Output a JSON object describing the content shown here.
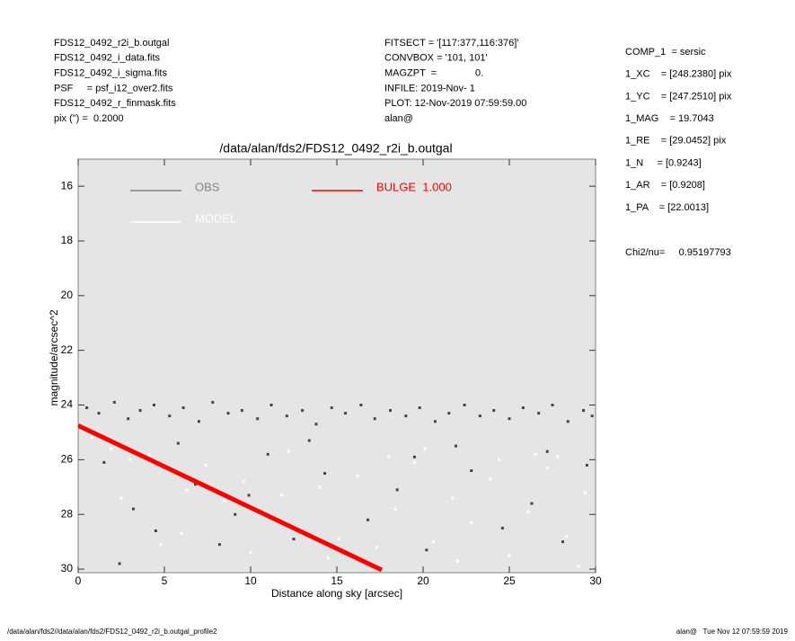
{
  "header": {
    "left": [
      "FDS12_0492_r2i_b.outgal",
      "FDS12_0492_i_data.fits",
      "FDS12_0492_i_sigma.fits",
      "PSF     = psf_i12_over2.fits",
      "FDS12_0492_r_finmask.fits",
      "pix (\") =  0.2000"
    ],
    "middle": [
      "FITSECT = '[117:377,116:376]'",
      "CONVBOX = '101, 101'",
      "MAGZPT  =              0.",
      "INFILE: 2019-Nov- 1",
      "PLOT: 12-Nov-2019 07:59:59.00",
      "alan@"
    ],
    "right": [
      "COMP_1  = sersic",
      "1_XC    = [248.2380] pix",
      "1_YC    = [247.2510] pix",
      "1_MAG    = 19.7043",
      "1_RE    = [29.0452] pix",
      "1_N     = [0.9243]",
      "1_AR    = [0.9208]",
      "1_PA    = [22.0013]"
    ],
    "chi2": "Chi2/nu=     0.95197793"
  },
  "footer": {
    "left": "/data/alan/fds2//data/alan/fds2/FDS12_0492_r2i_b.outgal_profile2",
    "right": "alan@   Tue Nov 12 07:59:59 2019"
  },
  "chart_data": {
    "type": "scatter",
    "title": "/data/alan/fds2/FDS12_0492_r2i_b.outgal",
    "x_label": "Distance along sky [arcsec]",
    "y_label": "magnitude/arcsec^2",
    "xlim": [
      0,
      30
    ],
    "ylim": [
      30.13,
      15.01
    ],
    "xticks": [
      0,
      5,
      10,
      15,
      20,
      25,
      30
    ],
    "yticks": [
      16,
      18,
      20,
      22,
      24,
      26,
      28,
      30
    ],
    "background": "#e5e5e5",
    "series": [
      {
        "name": "OBS",
        "color": "#444444",
        "mode": "markers",
        "x": [
          0.5,
          1.2,
          2.1,
          2.9,
          3.6,
          4.4,
          5.3,
          6.1,
          7.0,
          7.8,
          8.7,
          9.5,
          10.4,
          11.2,
          12.1,
          13.0,
          13.8,
          14.7,
          15.5,
          16.4,
          17.2,
          18.1,
          19.0,
          19.8,
          20.7,
          21.5,
          22.4,
          23.3,
          24.1,
          25.0,
          25.8,
          26.7,
          27.5,
          28.4,
          29.3,
          29.8,
          1.5,
          3.2,
          4.5,
          6.8,
          8.2,
          9.9,
          12.5,
          14.3,
          16.8,
          18.5,
          20.2,
          22.8,
          24.6,
          26.3,
          28.1,
          29.5,
          2.4,
          11.0,
          19.5,
          27.2,
          5.8,
          13.4,
          21.9,
          9.1
        ],
        "y": [
          24.1,
          24.3,
          23.9,
          24.5,
          24.2,
          24.0,
          24.4,
          24.1,
          24.6,
          23.9,
          24.3,
          24.2,
          24.5,
          24.0,
          24.4,
          24.2,
          24.7,
          24.1,
          24.3,
          24.0,
          24.5,
          24.2,
          24.4,
          24.1,
          24.6,
          24.3,
          24.0,
          24.4,
          24.2,
          24.5,
          24.1,
          24.3,
          24.0,
          24.6,
          24.2,
          24.4,
          26.1,
          27.8,
          28.6,
          26.9,
          29.1,
          27.3,
          28.9,
          26.5,
          28.2,
          27.1,
          29.3,
          26.4,
          28.5,
          27.6,
          29.0,
          26.2,
          29.8,
          25.8,
          25.9,
          25.7,
          25.4,
          25.3,
          25.5,
          28.0
        ]
      },
      {
        "name": "MODEL",
        "color": "#ffffff",
        "mode": "markers",
        "x": [
          0.8,
          1.9,
          3.0,
          4.1,
          5.2,
          6.3,
          7.4,
          8.5,
          9.6,
          10.7,
          11.8,
          12.9,
          14.0,
          15.1,
          16.2,
          17.3,
          18.4,
          19.5,
          20.6,
          21.7,
          22.8,
          23.9,
          25.0,
          26.1,
          27.2,
          28.3,
          29.4,
          2.5,
          6.0,
          10.0,
          14.5,
          18.0,
          22.0,
          26.5,
          29.0,
          4.8,
          12.2,
          20.1,
          24.4,
          27.8
        ],
        "y": [
          25.2,
          25.6,
          26.0,
          25.8,
          26.4,
          27.1,
          26.2,
          27.5,
          26.8,
          28.0,
          27.3,
          28.6,
          27.0,
          28.9,
          26.6,
          29.2,
          27.8,
          26.1,
          29.0,
          27.4,
          28.3,
          26.7,
          29.5,
          27.9,
          26.3,
          28.8,
          27.2,
          27.4,
          28.7,
          29.4,
          29.6,
          25.9,
          29.7,
          25.8,
          29.9,
          29.1,
          25.7,
          25.6,
          26.0,
          25.9
        ]
      },
      {
        "name": "BULGE  1.000",
        "color": "#ff0000",
        "mode": "lines",
        "x": [
          0,
          5,
          10,
          15,
          17.6
        ],
        "y": [
          24.75,
          26.25,
          27.75,
          29.25,
          30.03
        ]
      }
    ]
  }
}
